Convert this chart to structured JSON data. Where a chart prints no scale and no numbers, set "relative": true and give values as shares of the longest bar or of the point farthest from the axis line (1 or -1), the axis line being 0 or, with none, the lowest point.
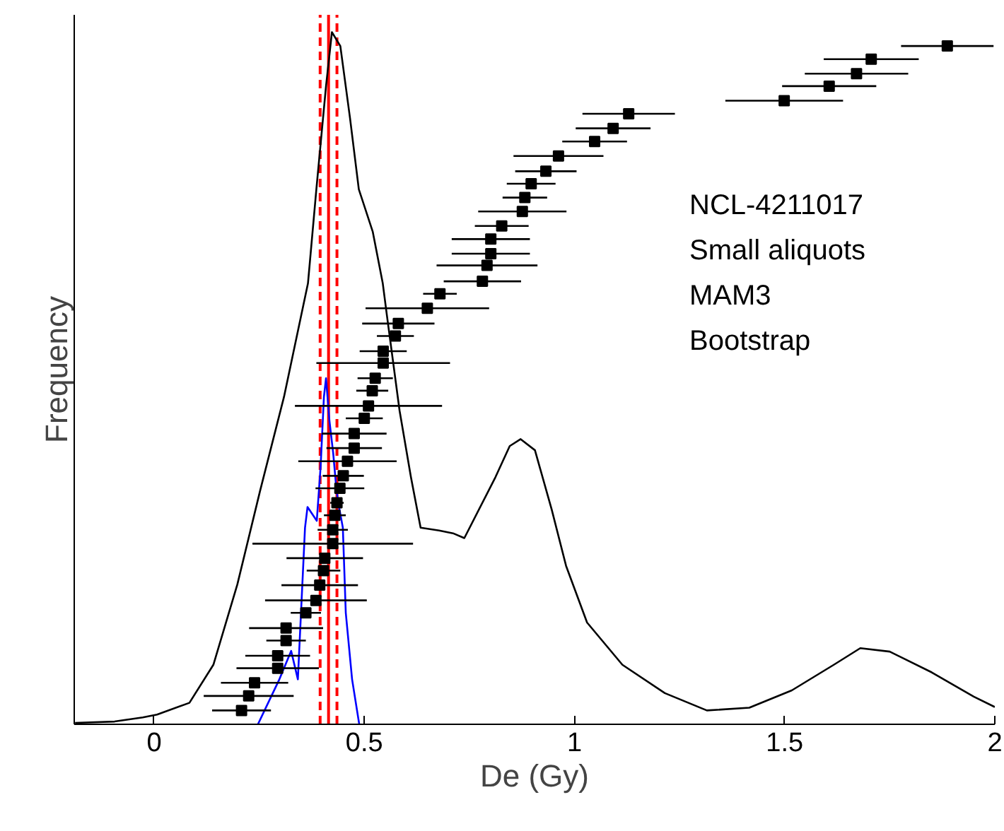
{
  "chart_data": {
    "type": "line",
    "xlabel": "De (Gy)",
    "ylabel": "Frequency",
    "relative": true,
    "xlim": [
      -0.19,
      2
    ],
    "xticks": [
      0,
      0.5,
      1,
      1.5,
      2
    ],
    "grid": false,
    "legend": false,
    "annotations": [
      "NCL-4211017",
      "Small aliquots",
      "MAM3",
      "Bootstrap"
    ],
    "ref_lines": [
      {
        "axis": "x",
        "value": 0.415,
        "color": "#ff0000",
        "line_style": "solid"
      },
      {
        "axis": "x",
        "value": 0.395,
        "color": "#ff0000",
        "line_style": "dashed"
      },
      {
        "axis": "x",
        "value": 0.435,
        "color": "#ff0000",
        "line_style": "dashed"
      }
    ],
    "series": [
      {
        "type": "line",
        "color": "#000000",
        "line_style": "solid",
        "x": [
          -0.188,
          -0.094,
          -0.027,
          0.007,
          0.084,
          0.141,
          0.198,
          0.252,
          0.309,
          0.366,
          0.386,
          0.409,
          0.423,
          0.443,
          0.466,
          0.487,
          0.52,
          0.544,
          0.554,
          0.584,
          0.611,
          0.634,
          0.678,
          0.711,
          0.738,
          0.812,
          0.846,
          0.872,
          0.906,
          0.946,
          0.98,
          1.03,
          1.114,
          1.215,
          1.315,
          1.416,
          1.517,
          1.617,
          1.68,
          1.75,
          1.85,
          1.95,
          2.0
        ],
        "values": [
          0.002,
          0.004,
          0.01,
          0.014,
          0.031,
          0.086,
          0.202,
          0.337,
          0.473,
          0.637,
          0.773,
          0.922,
          1.0,
          0.98,
          0.876,
          0.773,
          0.712,
          0.637,
          0.59,
          0.453,
          0.357,
          0.284,
          0.28,
          0.276,
          0.269,
          0.357,
          0.402,
          0.412,
          0.396,
          0.31,
          0.229,
          0.147,
          0.086,
          0.045,
          0.02,
          0.024,
          0.049,
          0.086,
          0.11,
          0.105,
          0.075,
          0.04,
          0.025
        ]
      },
      {
        "type": "line",
        "color": "#0000ff",
        "line_style": "solid",
        "x": [
          0.247,
          0.298,
          0.326,
          0.342,
          0.359,
          0.365,
          0.387,
          0.396,
          0.404,
          0.409,
          0.417,
          0.426,
          0.432,
          0.437,
          0.449,
          0.456,
          0.471,
          0.488
        ],
        "values": [
          0,
          0.065,
          0.106,
          0.065,
          0.284,
          0.314,
          0.294,
          0.371,
          0.473,
          0.5,
          0.439,
          0.392,
          0.351,
          0.324,
          0.284,
          0.161,
          0.065,
          0
        ]
      },
      {
        "type": "scatter",
        "color": "#000000",
        "marker": "square",
        "x": [
          0.208,
          0.225,
          0.239,
          0.294,
          0.294,
          0.314,
          0.314,
          0.361,
          0.385,
          0.394,
          0.403,
          0.406,
          0.425,
          0.425,
          0.43,
          0.435,
          0.442,
          0.45,
          0.46,
          0.476,
          0.476,
          0.5,
          0.51,
          0.519,
          0.526,
          0.545,
          0.545,
          0.574,
          0.581,
          0.65,
          0.68,
          0.781,
          0.792,
          0.801,
          0.801,
          0.827,
          0.876,
          0.882,
          0.897,
          0.932,
          0.962,
          1.048,
          1.092,
          1.129,
          1.499,
          1.606,
          1.671,
          1.706,
          1.887
        ],
        "values": [
          0.02,
          0.041,
          0.06,
          0.081,
          0.099,
          0.121,
          0.139,
          0.161,
          0.179,
          0.201,
          0.222,
          0.24,
          0.261,
          0.281,
          0.302,
          0.32,
          0.341,
          0.359,
          0.38,
          0.399,
          0.42,
          0.442,
          0.46,
          0.482,
          0.5,
          0.522,
          0.539,
          0.561,
          0.579,
          0.601,
          0.622,
          0.64,
          0.663,
          0.68,
          0.701,
          0.72,
          0.741,
          0.761,
          0.781,
          0.799,
          0.821,
          0.842,
          0.861,
          0.882,
          0.901,
          0.922,
          0.94,
          0.961,
          0.98
        ],
        "xerrors": [
          0.07,
          0.107,
          0.08,
          0.098,
          0.077,
          0.047,
          0.088,
          0.036,
          0.121,
          0.091,
          0.04,
          0.091,
          0.191,
          0.036,
          0.026,
          0.016,
          0.058,
          0.049,
          0.117,
          0.066,
          0.077,
          0.044,
          0.175,
          0.038,
          0.042,
          0.159,
          0.056,
          0.044,
          0.086,
          0.147,
          0.04,
          0.092,
          0.12,
          0.093,
          0.093,
          0.064,
          0.105,
          0.053,
          0.058,
          0.073,
          0.107,
          0.077,
          0.089,
          0.11,
          0.14,
          0.112,
          0.123,
          0.113,
          0.11
        ]
      }
    ]
  }
}
